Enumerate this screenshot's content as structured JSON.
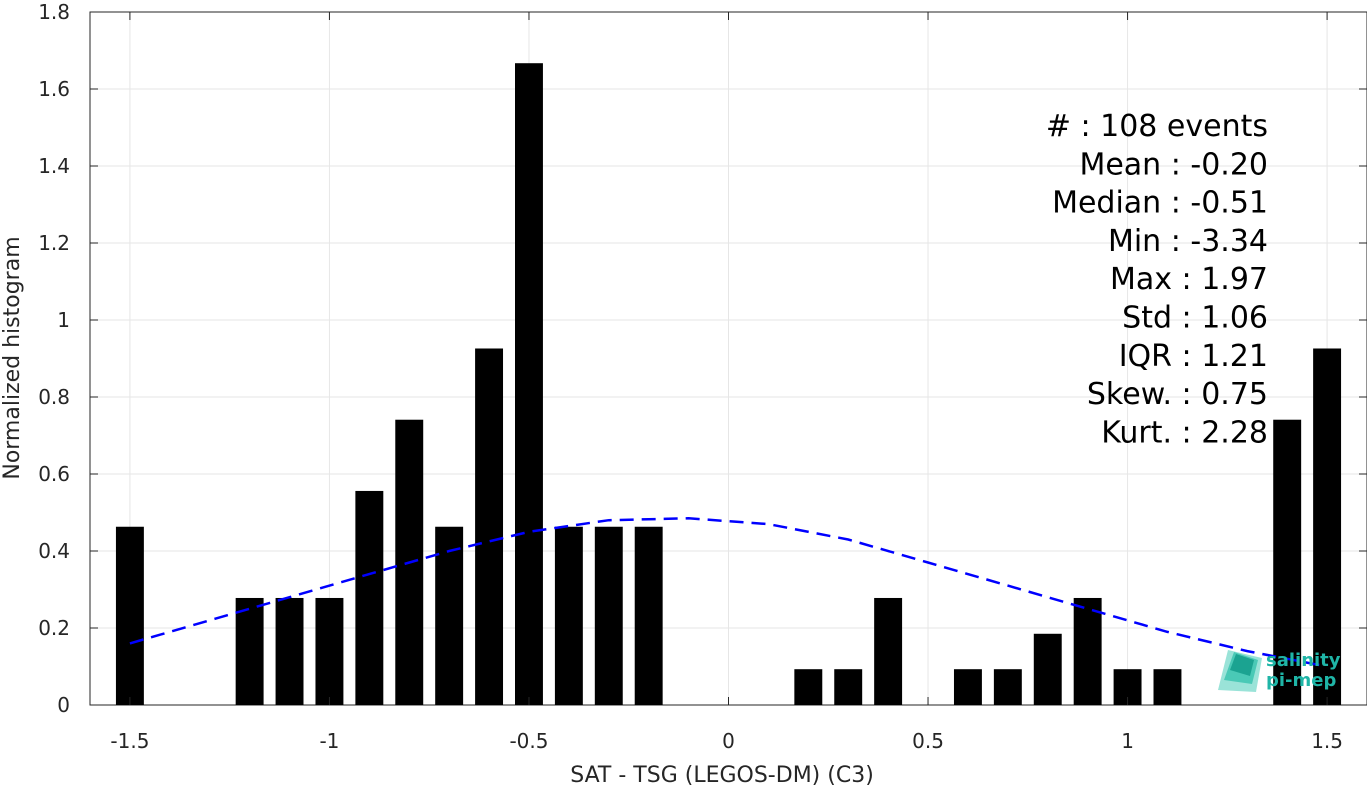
{
  "chart_data": {
    "type": "bar",
    "xlabel": "SAT - TSG (LEGOS-DM) (C3)",
    "ylabel": "Normalized histogram",
    "xlim": [
      -1.6,
      1.6
    ],
    "ylim": [
      0,
      1.8
    ],
    "x_ticks": [
      -1.5,
      -1,
      -0.5,
      0,
      0.5,
      1,
      1.5
    ],
    "x_tick_labels": [
      "-1.5",
      "-1",
      "-0.5",
      "0",
      "0.5",
      "1",
      "1.5"
    ],
    "y_ticks": [
      0,
      0.2,
      0.4,
      0.6,
      0.8,
      1,
      1.2,
      1.4,
      1.6,
      1.8
    ],
    "y_tick_labels": [
      "0",
      "0.2",
      "0.4",
      "0.6",
      "0.8",
      "1",
      "1.2",
      "1.4",
      "1.6",
      "1.8"
    ],
    "grid": true,
    "bar_width": 0.07,
    "bars": {
      "x": [
        -1.5,
        -1.2,
        -1.1,
        -1.0,
        -0.9,
        -0.8,
        -0.7,
        -0.6,
        -0.5,
        -0.4,
        -0.3,
        -0.2,
        0.2,
        0.3,
        0.4,
        0.6,
        0.7,
        0.8,
        0.9,
        1.0,
        1.1,
        1.4,
        1.5
      ],
      "values": [
        0.463,
        0.278,
        0.278,
        0.278,
        0.556,
        0.741,
        0.463,
        0.926,
        1.667,
        0.463,
        0.463,
        0.463,
        0.093,
        0.093,
        0.278,
        0.093,
        0.093,
        0.185,
        0.278,
        0.093,
        0.093,
        0.741,
        0.926
      ],
      "color": "#000000"
    },
    "fit_curve": {
      "style": "dashed",
      "color": "#0000ff",
      "x": [
        -1.5,
        -1.3,
        -1.1,
        -0.9,
        -0.7,
        -0.5,
        -0.3,
        -0.1,
        0.1,
        0.3,
        0.5,
        0.7,
        0.9,
        1.1,
        1.3,
        1.5
      ],
      "y": [
        0.16,
        0.22,
        0.28,
        0.34,
        0.4,
        0.45,
        0.48,
        0.485,
        0.47,
        0.43,
        0.37,
        0.31,
        0.25,
        0.19,
        0.14,
        0.1
      ]
    },
    "annotations": [
      "#  : 108 events",
      "Mean : -0.20",
      "Median : -0.51",
      "Min : -3.34",
      "Max : 1.97",
      "Std : 1.06",
      "IQR : 1.21",
      "Skew. : 0.75",
      "Kurt. : 2.28"
    ]
  },
  "logo": {
    "line1": "salinity",
    "line2": "pi-mep",
    "color": "#1fb5a7"
  }
}
